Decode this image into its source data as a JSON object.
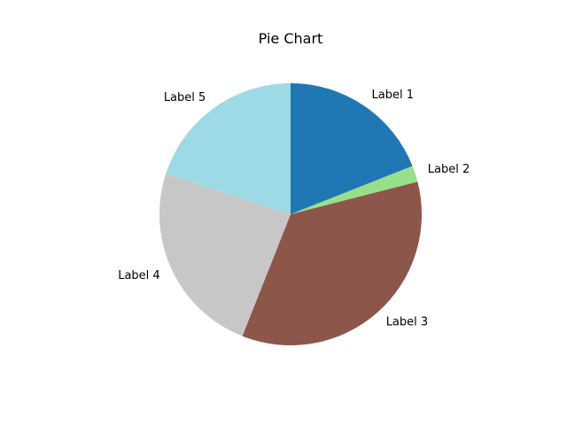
{
  "chart_data": {
    "type": "pie",
    "title": "Pie Chart",
    "start_angle_deg": 90,
    "direction": "clockwise",
    "labels": [
      "Label 1",
      "Label 2",
      "Label 3",
      "Label 4",
      "Label 5"
    ],
    "values": [
      19,
      2,
      35,
      24,
      20
    ],
    "colors": [
      "#1f77b4",
      "#98df8a",
      "#8c564b",
      "#c7c7c7",
      "#9edae5"
    ]
  }
}
